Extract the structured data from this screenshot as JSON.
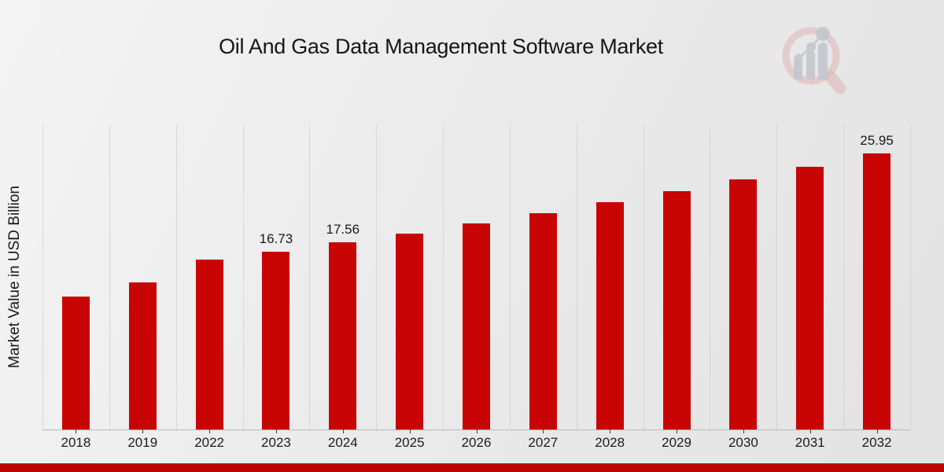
{
  "chart_data": {
    "type": "bar",
    "title": "Oil And Gas Data Management Software Market",
    "ylabel": "Market Value in USD Billion",
    "xlabel": "",
    "categories": [
      "2018",
      "2019",
      "2022",
      "2023",
      "2024",
      "2025",
      "2026",
      "2027",
      "2028",
      "2029",
      "2030",
      "2031",
      "2032"
    ],
    "values": [
      12.5,
      13.8,
      15.95,
      16.73,
      17.56,
      18.44,
      19.36,
      20.33,
      21.34,
      22.41,
      23.53,
      24.71,
      25.95
    ],
    "data_labels": [
      "",
      "",
      "",
      "16.73",
      "17.56",
      "",
      "",
      "",
      "",
      "",
      "",
      "",
      "25.95"
    ],
    "ylim": [
      0,
      28.6
    ],
    "grid": "vertical dotted gridlines at category boundaries",
    "legend": "none",
    "bar_color": "#c90404",
    "axis_line_color": "#b9b9b9",
    "tick_color": "#3c3c3c",
    "text_color": "#1a1a1a"
  },
  "logo": {
    "name": "market-research-future-logo",
    "ring_color": "#dfb4b4",
    "glyph_color": "#c4c7cd"
  },
  "footer": {
    "accent_color": "#bd0404"
  }
}
